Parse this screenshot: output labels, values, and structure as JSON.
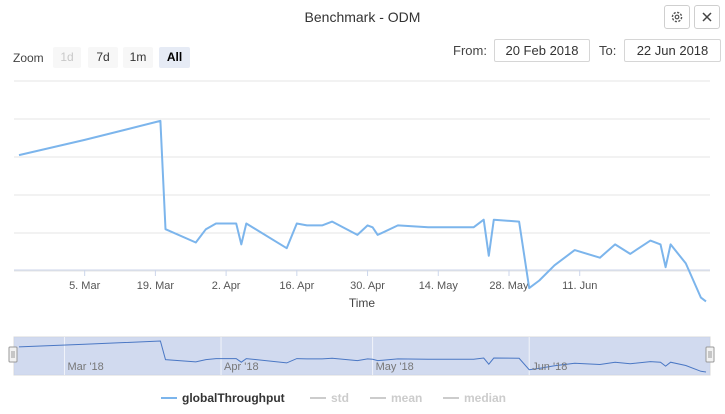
{
  "header": {
    "title": "Benchmark - ODM",
    "settings_icon": "gear-icon",
    "close_icon": "close-icon"
  },
  "range_selector": {
    "zoom_label": "Zoom",
    "buttons": [
      {
        "label": "1d",
        "state": "disabled"
      },
      {
        "label": "7d",
        "state": "normal"
      },
      {
        "label": "1m",
        "state": "normal"
      },
      {
        "label": "All",
        "state": "active"
      }
    ],
    "from_label": "From:",
    "from_value": "20 Feb 2018",
    "to_label": "To:",
    "to_value": "22 Jun 2018"
  },
  "colors": {
    "series": "#7cb5ec",
    "grid": "#e6e6e6",
    "navigator_mask": "#c9d3ec",
    "legend_off": "#cccccc"
  },
  "chart_data": {
    "type": "line",
    "title": "Benchmark - ODM",
    "xlabel": "Time",
    "ylabel": "",
    "x_ticks": [
      "5. Mar",
      "19. Mar",
      "2. Apr",
      "16. Apr",
      "30. Apr",
      "14. May",
      "28. May",
      "11. Jun"
    ],
    "navigator_ticks": [
      "Mar '18",
      "Apr '18",
      "May '18",
      "Jun '18"
    ],
    "grid": true,
    "y_axis_labels_shown": false,
    "legend_position": "bottom",
    "series": [
      {
        "name": "globalThroughput",
        "visible": true,
        "points": [
          [
            "2018-02-20",
            6.1
          ],
          [
            "2018-03-05",
            6.9
          ],
          [
            "2018-03-20",
            7.9
          ],
          [
            "2018-03-21",
            2.2
          ],
          [
            "2018-03-27",
            1.5
          ],
          [
            "2018-03-29",
            2.2
          ],
          [
            "2018-03-31",
            2.5
          ],
          [
            "2018-04-04",
            2.5
          ],
          [
            "2018-04-05",
            1.4
          ],
          [
            "2018-04-06",
            2.5
          ],
          [
            "2018-04-14",
            1.2
          ],
          [
            "2018-04-16",
            2.5
          ],
          [
            "2018-04-18",
            2.4
          ],
          [
            "2018-04-21",
            2.4
          ],
          [
            "2018-04-23",
            2.6
          ],
          [
            "2018-04-28",
            1.9
          ],
          [
            "2018-04-30",
            2.4
          ],
          [
            "2018-05-01",
            2.3
          ],
          [
            "2018-05-02",
            1.9
          ],
          [
            "2018-05-06",
            2.4
          ],
          [
            "2018-05-12",
            2.3
          ],
          [
            "2018-05-21",
            2.3
          ],
          [
            "2018-05-23",
            2.7
          ],
          [
            "2018-05-24",
            0.8
          ],
          [
            "2018-05-25",
            2.7
          ],
          [
            "2018-05-30",
            2.6
          ],
          [
            "2018-06-01",
            -0.9
          ],
          [
            "2018-06-03",
            -0.5
          ],
          [
            "2018-06-06",
            0.3
          ],
          [
            "2018-06-10",
            1.1
          ],
          [
            "2018-06-15",
            0.7
          ],
          [
            "2018-06-18",
            1.4
          ],
          [
            "2018-06-21",
            0.9
          ],
          [
            "2018-06-25",
            1.6
          ],
          [
            "2018-06-27",
            1.4
          ],
          [
            "2018-06-28",
            0.2
          ],
          [
            "2018-06-29",
            1.4
          ],
          [
            "2018-07-02",
            0.4
          ],
          [
            "2018-07-05",
            -1.4
          ],
          [
            "2018-07-06",
            -1.6
          ]
        ]
      },
      {
        "name": "std",
        "visible": false
      },
      {
        "name": "mean",
        "visible": false
      },
      {
        "name": "median",
        "visible": false
      }
    ]
  }
}
